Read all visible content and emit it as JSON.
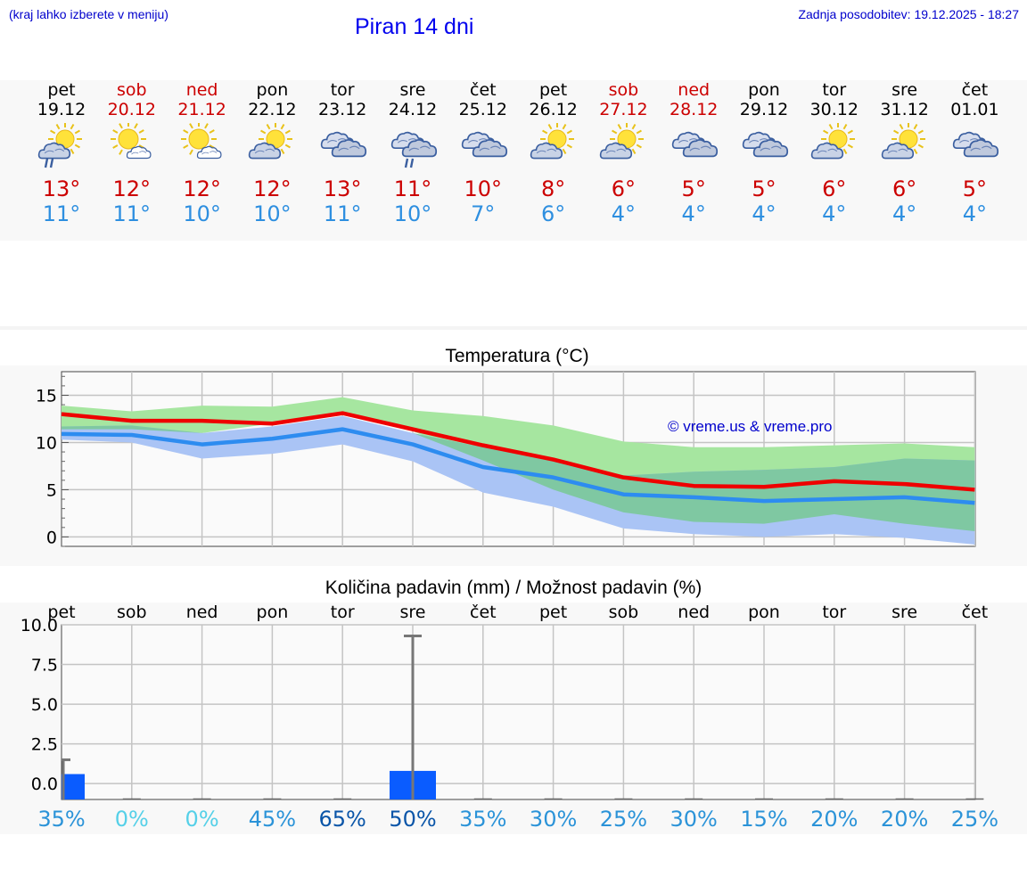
{
  "header": {
    "hint": "(kraj lahko izberete v meniju)",
    "title": "Piran 14 dni",
    "updated": "Zadnja posodobitev: 19.12.2025 - 18:27"
  },
  "days": [
    {
      "name": "pet",
      "date": "19.12",
      "weekend": false,
      "icon": "partly-sunny-drizzle-icon",
      "tmax": "13°",
      "tmin": "11°"
    },
    {
      "name": "sob",
      "date": "20.12",
      "weekend": true,
      "icon": "sun-small-cloud-icon",
      "tmax": "12°",
      "tmin": "11°"
    },
    {
      "name": "ned",
      "date": "21.12",
      "weekend": true,
      "icon": "sun-small-cloud-icon",
      "tmax": "12°",
      "tmin": "10°"
    },
    {
      "name": "pon",
      "date": "22.12",
      "weekend": false,
      "icon": "partly-sunny-icon",
      "tmax": "12°",
      "tmin": "10°"
    },
    {
      "name": "tor",
      "date": "23.12",
      "weekend": false,
      "icon": "cloudy-icon",
      "tmax": "13°",
      "tmin": "11°"
    },
    {
      "name": "sre",
      "date": "24.12",
      "weekend": false,
      "icon": "cloudy-drizzle-icon",
      "tmax": "11°",
      "tmin": "10°"
    },
    {
      "name": "čet",
      "date": "25.12",
      "weekend": false,
      "icon": "cloudy-icon",
      "tmax": "10°",
      "tmin": "7°"
    },
    {
      "name": "pet",
      "date": "26.12",
      "weekend": false,
      "icon": "partly-sunny-icon",
      "tmax": "8°",
      "tmin": "6°"
    },
    {
      "name": "sob",
      "date": "27.12",
      "weekend": true,
      "icon": "partly-sunny-icon",
      "tmax": "6°",
      "tmin": "4°"
    },
    {
      "name": "ned",
      "date": "28.12",
      "weekend": true,
      "icon": "cloudy-icon",
      "tmax": "5°",
      "tmin": "4°"
    },
    {
      "name": "pon",
      "date": "29.12",
      "weekend": false,
      "icon": "cloudy-icon",
      "tmax": "5°",
      "tmin": "4°"
    },
    {
      "name": "tor",
      "date": "30.12",
      "weekend": false,
      "icon": "partly-sunny-icon",
      "tmax": "6°",
      "tmin": "4°"
    },
    {
      "name": "sre",
      "date": "31.12",
      "weekend": false,
      "icon": "partly-sunny-icon",
      "tmax": "6°",
      "tmin": "4°"
    },
    {
      "name": "čet",
      "date": "01.01",
      "weekend": false,
      "icon": "cloudy-icon",
      "tmax": "5°",
      "tmin": "4°"
    }
  ],
  "colors": {
    "max_line": "#ee0000",
    "min_line": "#2d8cf0",
    "max_band": "#a6e6a0",
    "min_band": "#aac4f5",
    "overlap_band": "#7fc8a2",
    "bar": "#0a5cff",
    "whisker": "#777777",
    "weekend": "#cc0000",
    "pct_low": "#55d0e8",
    "pct_mid": "#2b93d8",
    "pct_high": "#0a55a8"
  },
  "chart_data": [
    {
      "type": "line",
      "title": "Temperatura (°C)",
      "credit": "© vreme.us & vreme.pro",
      "x": [
        0,
        1,
        2,
        3,
        4,
        5,
        6,
        7,
        8,
        9,
        10,
        11,
        12,
        13
      ],
      "ylim": [
        -1,
        17.5
      ],
      "yticks": [
        0,
        5,
        10,
        15
      ],
      "grid": true,
      "series": [
        {
          "name": "max",
          "values": [
            13.0,
            12.3,
            12.3,
            12.0,
            13.1,
            11.4,
            9.7,
            8.2,
            6.3,
            5.4,
            5.3,
            5.9,
            5.6,
            5.0
          ]
        },
        {
          "name": "min",
          "values": [
            10.9,
            10.8,
            9.8,
            10.4,
            11.4,
            9.8,
            7.4,
            6.3,
            4.5,
            4.2,
            3.8,
            4.0,
            4.2,
            3.6
          ]
        },
        {
          "name": "max_range_high",
          "values": [
            13.9,
            13.3,
            13.9,
            13.8,
            14.8,
            13.4,
            12.8,
            11.8,
            10.1,
            9.5,
            9.5,
            9.7,
            9.9,
            9.5
          ]
        },
        {
          "name": "max_range_low",
          "values": [
            11.4,
            11.4,
            11.0,
            12.0,
            13.0,
            11.2,
            8.1,
            5.0,
            2.6,
            1.6,
            1.4,
            2.4,
            1.4,
            0.6
          ]
        },
        {
          "name": "min_range_high",
          "values": [
            11.7,
            11.8,
            11.0,
            11.7,
            12.8,
            11.0,
            9.5,
            8.0,
            6.5,
            6.9,
            7.1,
            7.4,
            8.3,
            8.1
          ]
        },
        {
          "name": "min_range_low",
          "values": [
            10.3,
            10.0,
            8.3,
            8.8,
            9.8,
            8.0,
            4.7,
            3.2,
            0.9,
            0.3,
            0.0,
            0.3,
            -0.1,
            -0.8
          ]
        }
      ]
    },
    {
      "type": "bar",
      "title": "Količina padavin (mm) / Možnost padavin (%)",
      "categories": [
        "pet",
        "sob",
        "ned",
        "pon",
        "tor",
        "sre",
        "čet",
        "pet",
        "sob",
        "ned",
        "pon",
        "tor",
        "sre",
        "čet"
      ],
      "ylim": [
        -1,
        10
      ],
      "yticks": [
        0,
        2.5,
        5,
        7.5,
        10
      ],
      "ytick_labels": [
        "0.0",
        "2.5",
        "5.0",
        "7.5",
        "10.0"
      ],
      "values": [
        0.6,
        0,
        0,
        0,
        0,
        0.8,
        0,
        0,
        0,
        0,
        0,
        0,
        0,
        0
      ],
      "max_values": [
        1.5,
        0,
        0,
        0,
        0,
        9.3,
        0,
        0,
        0,
        0,
        0,
        0,
        0,
        0
      ],
      "probability": [
        "35%",
        "0%",
        "0%",
        "45%",
        "65%",
        "50%",
        "35%",
        "30%",
        "25%",
        "30%",
        "15%",
        "20%",
        "20%",
        "25%"
      ],
      "probability_values": [
        35,
        0,
        0,
        45,
        65,
        50,
        35,
        30,
        25,
        30,
        15,
        20,
        20,
        25
      ]
    }
  ]
}
